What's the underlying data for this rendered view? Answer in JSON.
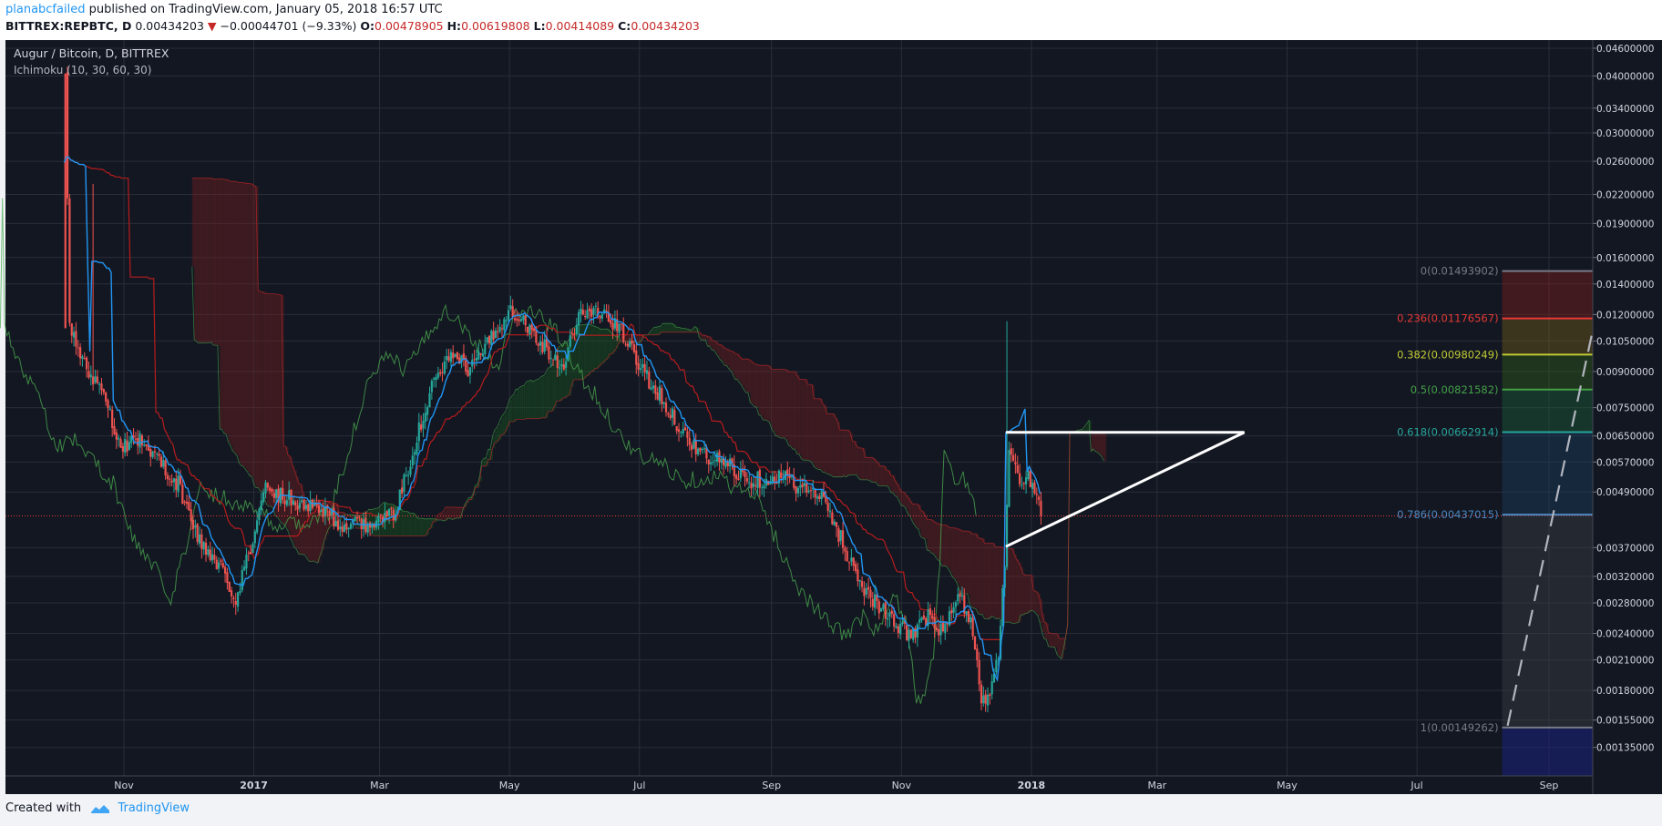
{
  "header": {
    "author": "planabcfailed",
    "published_text": "published on TradingView.com, January 05, 2018 16:57 UTC",
    "symbol": "BITTREX:REPBTC, D",
    "last": "0.00434203",
    "change_arrow": "▼",
    "change": "−0.00044701 (−9.33%)",
    "o_label": "O:",
    "o_value": "0.00478905",
    "h_label": "H:",
    "h_value": "0.00619808",
    "l_label": "L:",
    "l_value": "0.00414089",
    "c_label": "C:",
    "c_value": "0.00434203"
  },
  "footer": {
    "created_with": "Created with",
    "brand": "TradingView"
  },
  "colors": {
    "background": "#131722",
    "grid": "#2a2e39",
    "up": "#26a69a",
    "down": "#ef5350",
    "tenkan": "#2196f3",
    "kijun": "#b71c1c",
    "chikou": "#4caf50",
    "cloud": "#7b1f1f",
    "trendline": "#ffffff",
    "price_line": "#e53935"
  },
  "chart_data": {
    "type": "candlestick",
    "title": "Augur / Bitcoin, D, BITTREX",
    "indicator": "Ichimoku (10, 30, 60, 30)",
    "y_scale": "log",
    "ylim": [
      0.00118,
      0.0475
    ],
    "y_ticks": [
      "0.04600000",
      "0.04000000",
      "0.03400000",
      "0.03000000",
      "0.02600000",
      "0.02200000",
      "0.01900000",
      "0.01600000",
      "0.01400000",
      "0.01200000",
      "0.01050000",
      "0.00900000",
      "0.00750000",
      "0.00650000",
      "0.00570000",
      "0.00490000",
      "0.00370000",
      "0.00320000",
      "0.00280000",
      "0.00240000",
      "0.00210000",
      "0.00180000",
      "0.00155000",
      "0.00135000"
    ],
    "x_ticks": [
      "Nov",
      "2017",
      "Mar",
      "May",
      "Jul",
      "Sep",
      "Nov",
      "2018",
      "Mar",
      "May",
      "Jul",
      "Sep"
    ],
    "x_tick_dates": [
      "2016-11-01",
      "2017-01-01",
      "2017-03-01",
      "2017-05-01",
      "2017-07-01",
      "2017-09-01",
      "2017-11-01",
      "2018-01-01",
      "2018-03-01",
      "2018-05-01",
      "2018-07-01",
      "2018-09-01"
    ],
    "first_date": "2016-10-04",
    "last_date": "2018-01-05",
    "current_price": "0.00434203",
    "price_anchors": [
      [
        "2016-10-04",
        0.0405
      ],
      [
        "2016-10-06",
        0.0115
      ],
      [
        "2016-10-12",
        0.0094
      ],
      [
        "2016-10-22",
        0.0082
      ],
      [
        "2016-10-30",
        0.0061
      ],
      [
        "2016-11-06",
        0.0065
      ],
      [
        "2016-11-16",
        0.0058
      ],
      [
        "2016-11-26",
        0.0051
      ],
      [
        "2016-12-05",
        0.0039
      ],
      [
        "2016-12-16",
        0.0033
      ],
      [
        "2016-12-23",
        0.0029
      ],
      [
        "2016-12-30",
        0.0037
      ],
      [
        "2017-01-06",
        0.005
      ],
      [
        "2017-01-20",
        0.0047
      ],
      [
        "2017-02-02",
        0.0045
      ],
      [
        "2017-02-12",
        0.0041
      ],
      [
        "2017-02-25",
        0.0042
      ],
      [
        "2017-03-08",
        0.0044
      ],
      [
        "2017-03-15",
        0.0058
      ],
      [
        "2017-03-25",
        0.0083
      ],
      [
        "2017-04-03",
        0.0097
      ],
      [
        "2017-04-12",
        0.0091
      ],
      [
        "2017-04-22",
        0.0106
      ],
      [
        "2017-05-01",
        0.0125
      ],
      [
        "2017-05-14",
        0.0106
      ],
      [
        "2017-05-25",
        0.0092
      ],
      [
        "2017-06-02",
        0.012
      ],
      [
        "2017-06-12",
        0.0122
      ],
      [
        "2017-06-22",
        0.011
      ],
      [
        "2017-07-01",
        0.0092
      ],
      [
        "2017-07-10",
        0.008
      ],
      [
        "2017-07-22",
        0.0065
      ],
      [
        "2017-08-01",
        0.0058
      ],
      [
        "2017-08-10",
        0.0057
      ],
      [
        "2017-08-20",
        0.0052
      ],
      [
        "2017-09-05",
        0.0053
      ],
      [
        "2017-09-15",
        0.005
      ],
      [
        "2017-09-25",
        0.0047
      ],
      [
        "2017-10-05",
        0.0037
      ],
      [
        "2017-10-12",
        0.0031
      ],
      [
        "2017-10-20",
        0.0028
      ],
      [
        "2017-10-28",
        0.0025
      ],
      [
        "2017-11-05",
        0.0024
      ],
      [
        "2017-11-13",
        0.0026
      ],
      [
        "2017-11-20",
        0.0024
      ],
      [
        "2017-11-27",
        0.0029
      ],
      [
        "2017-12-03",
        0.0026
      ],
      [
        "2017-12-08",
        0.0017
      ],
      [
        "2017-12-12",
        0.0018
      ],
      [
        "2017-12-16",
        0.0021
      ],
      [
        "2017-12-19",
        0.0035
      ],
      [
        "2017-12-21",
        0.006
      ],
      [
        "2017-12-25",
        0.0052
      ],
      [
        "2017-12-31",
        0.0052
      ],
      [
        "2018-01-03",
        0.005
      ],
      [
        "2018-01-05",
        0.00434
      ]
    ],
    "fibonacci": {
      "levels": [
        {
          "ratio": "0",
          "label": "0(0.01493902)",
          "value": 0.01493902,
          "color": "#787b86"
        },
        {
          "ratio": "0.236",
          "label": "0.236(0.01176567)",
          "value": 0.01176567,
          "color": "#e53935"
        },
        {
          "ratio": "0.382",
          "label": "0.382(0.00980249)",
          "value": 0.00980249,
          "color": "#c0ca33"
        },
        {
          "ratio": "0.5",
          "label": "0.5(0.00821582)",
          "value": 0.00821582,
          "color": "#43a047"
        },
        {
          "ratio": "0.618",
          "label": "0.618(0.00662914)",
          "value": 0.00662914,
          "color": "#26a69a"
        },
        {
          "ratio": "0.786",
          "label": "0.786(0.00437015)",
          "value": 0.00437015,
          "color": "#4f88c0"
        },
        {
          "ratio": "1",
          "label": "1(0.00149262)",
          "value": 0.00149262,
          "color": "#787b86"
        }
      ],
      "start_date": "2018-08-10",
      "end_date": "2018-09-28"
    },
    "triangle": {
      "top_start": [
        "2017-12-20",
        0.00662
      ],
      "top_end": [
        "2018-04-11",
        0.00662
      ],
      "bottom_start": [
        "2017-12-20",
        0.00372
      ]
    },
    "grid": true
  }
}
